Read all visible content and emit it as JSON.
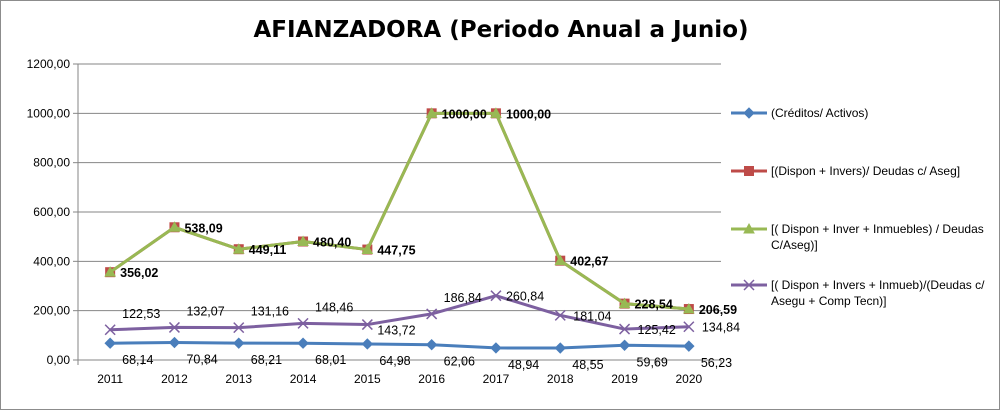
{
  "chart_data": {
    "type": "line",
    "title": "AFIANZADORA (Periodo Anual a Junio)",
    "categories": [
      "2011",
      "2012",
      "2013",
      "2014",
      "2015",
      "2016",
      "2017",
      "2018",
      "2019",
      "2020"
    ],
    "ylim": [
      0,
      1200
    ],
    "yticks": [
      0,
      200,
      400,
      600,
      800,
      1000,
      1200
    ],
    "ytick_labels": [
      "0,00",
      "200,00",
      "400,00",
      "600,00",
      "800,00",
      "1000,00",
      "1200,00"
    ],
    "grid": true,
    "legend_position": "right",
    "series": [
      {
        "name": "(Créditos/ Activos)",
        "legend_lines": [
          "(Créditos/ Activos)"
        ],
        "values": [
          68.14,
          70.84,
          68.21,
          68.01,
          64.98,
          62.06,
          48.94,
          48.55,
          59.69,
          56.23
        ],
        "labels": [
          "68,14",
          "70,84",
          "68,21",
          "68,01",
          "64,98",
          "62,06",
          "48,94",
          "48,55",
          "59,69",
          "56,23"
        ],
        "color": "#4a7ebb",
        "marker": "diamond",
        "label_bold": false
      },
      {
        "name": "[(Dispon + Invers)/ Deudas c/ Aseg]",
        "legend_lines": [
          "[(Dispon + Invers)/ Deudas c/ Aseg]"
        ],
        "values": [
          356.02,
          538.09,
          449.11,
          480.4,
          447.75,
          1000.0,
          1000.0,
          402.67,
          228.54,
          206.59
        ],
        "labels": [],
        "color": "#be4b48",
        "marker": "square",
        "label_bold": false
      },
      {
        "name": "[( Dispon + Inver + Inmuebles) / Deudas C/Aseg)]",
        "legend_lines": [
          "[( Dispon + Inver + Inmuebles) / Deudas",
          "C/Aseg)]"
        ],
        "values": [
          356.02,
          538.09,
          449.11,
          480.4,
          447.75,
          1000.0,
          1000.0,
          402.67,
          228.54,
          206.59
        ],
        "labels": [
          "356,02",
          "538,09",
          "449,11",
          "480,40",
          "447,75",
          "1000,00",
          "1000,00",
          "402,67",
          "228,54",
          "206,59"
        ],
        "color": "#98b954",
        "marker": "triangle",
        "label_bold": true
      },
      {
        "name": "[( Dispon + Invers + Inmueb)/(Deudas c/ Asegu + Comp Tecn)]",
        "legend_lines": [
          "[( Dispon + Invers + Inmueb)/(Deudas c/",
          "Asegu + Comp Tecn)]"
        ],
        "values": [
          122.53,
          132.07,
          131.16,
          148.46,
          143.72,
          186.84,
          260.84,
          181.04,
          125.42,
          134.84
        ],
        "labels": [
          "122,53",
          "132,07",
          "131,16",
          "148,46",
          "143,72",
          "186,84",
          "260,84",
          "181,04",
          "125,42",
          "134,84"
        ],
        "color": "#7d60a0",
        "marker": "x",
        "label_bold": false
      }
    ]
  }
}
